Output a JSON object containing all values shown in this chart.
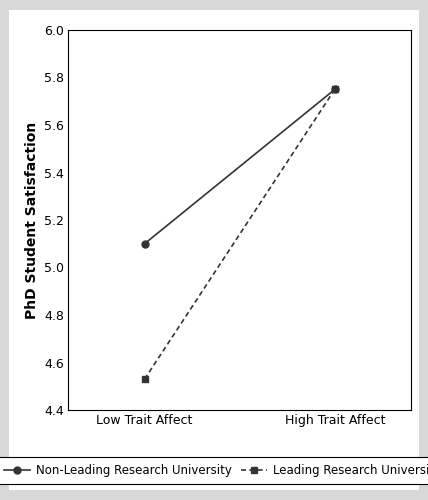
{
  "x_labels": [
    "Low Trait Affect",
    "High Trait Affect"
  ],
  "x_positions": [
    0,
    1
  ],
  "non_leading": [
    5.1,
    5.75
  ],
  "leading": [
    4.53,
    5.75
  ],
  "ylabel": "PhD Student Satisfaction",
  "ylim": [
    4.4,
    6.0
  ],
  "yticks": [
    4.4,
    4.6,
    4.8,
    5.0,
    5.2,
    5.4,
    5.6,
    5.8,
    6.0
  ],
  "line_color": "#333333",
  "legend_label_1": "Non-Leading Research University",
  "legend_label_2": "Leading Research University",
  "bg_color": "#ffffff",
  "outer_bg": "#d8d8d8",
  "axis_fontsize": 10,
  "tick_fontsize": 9,
  "legend_fontsize": 8.5
}
